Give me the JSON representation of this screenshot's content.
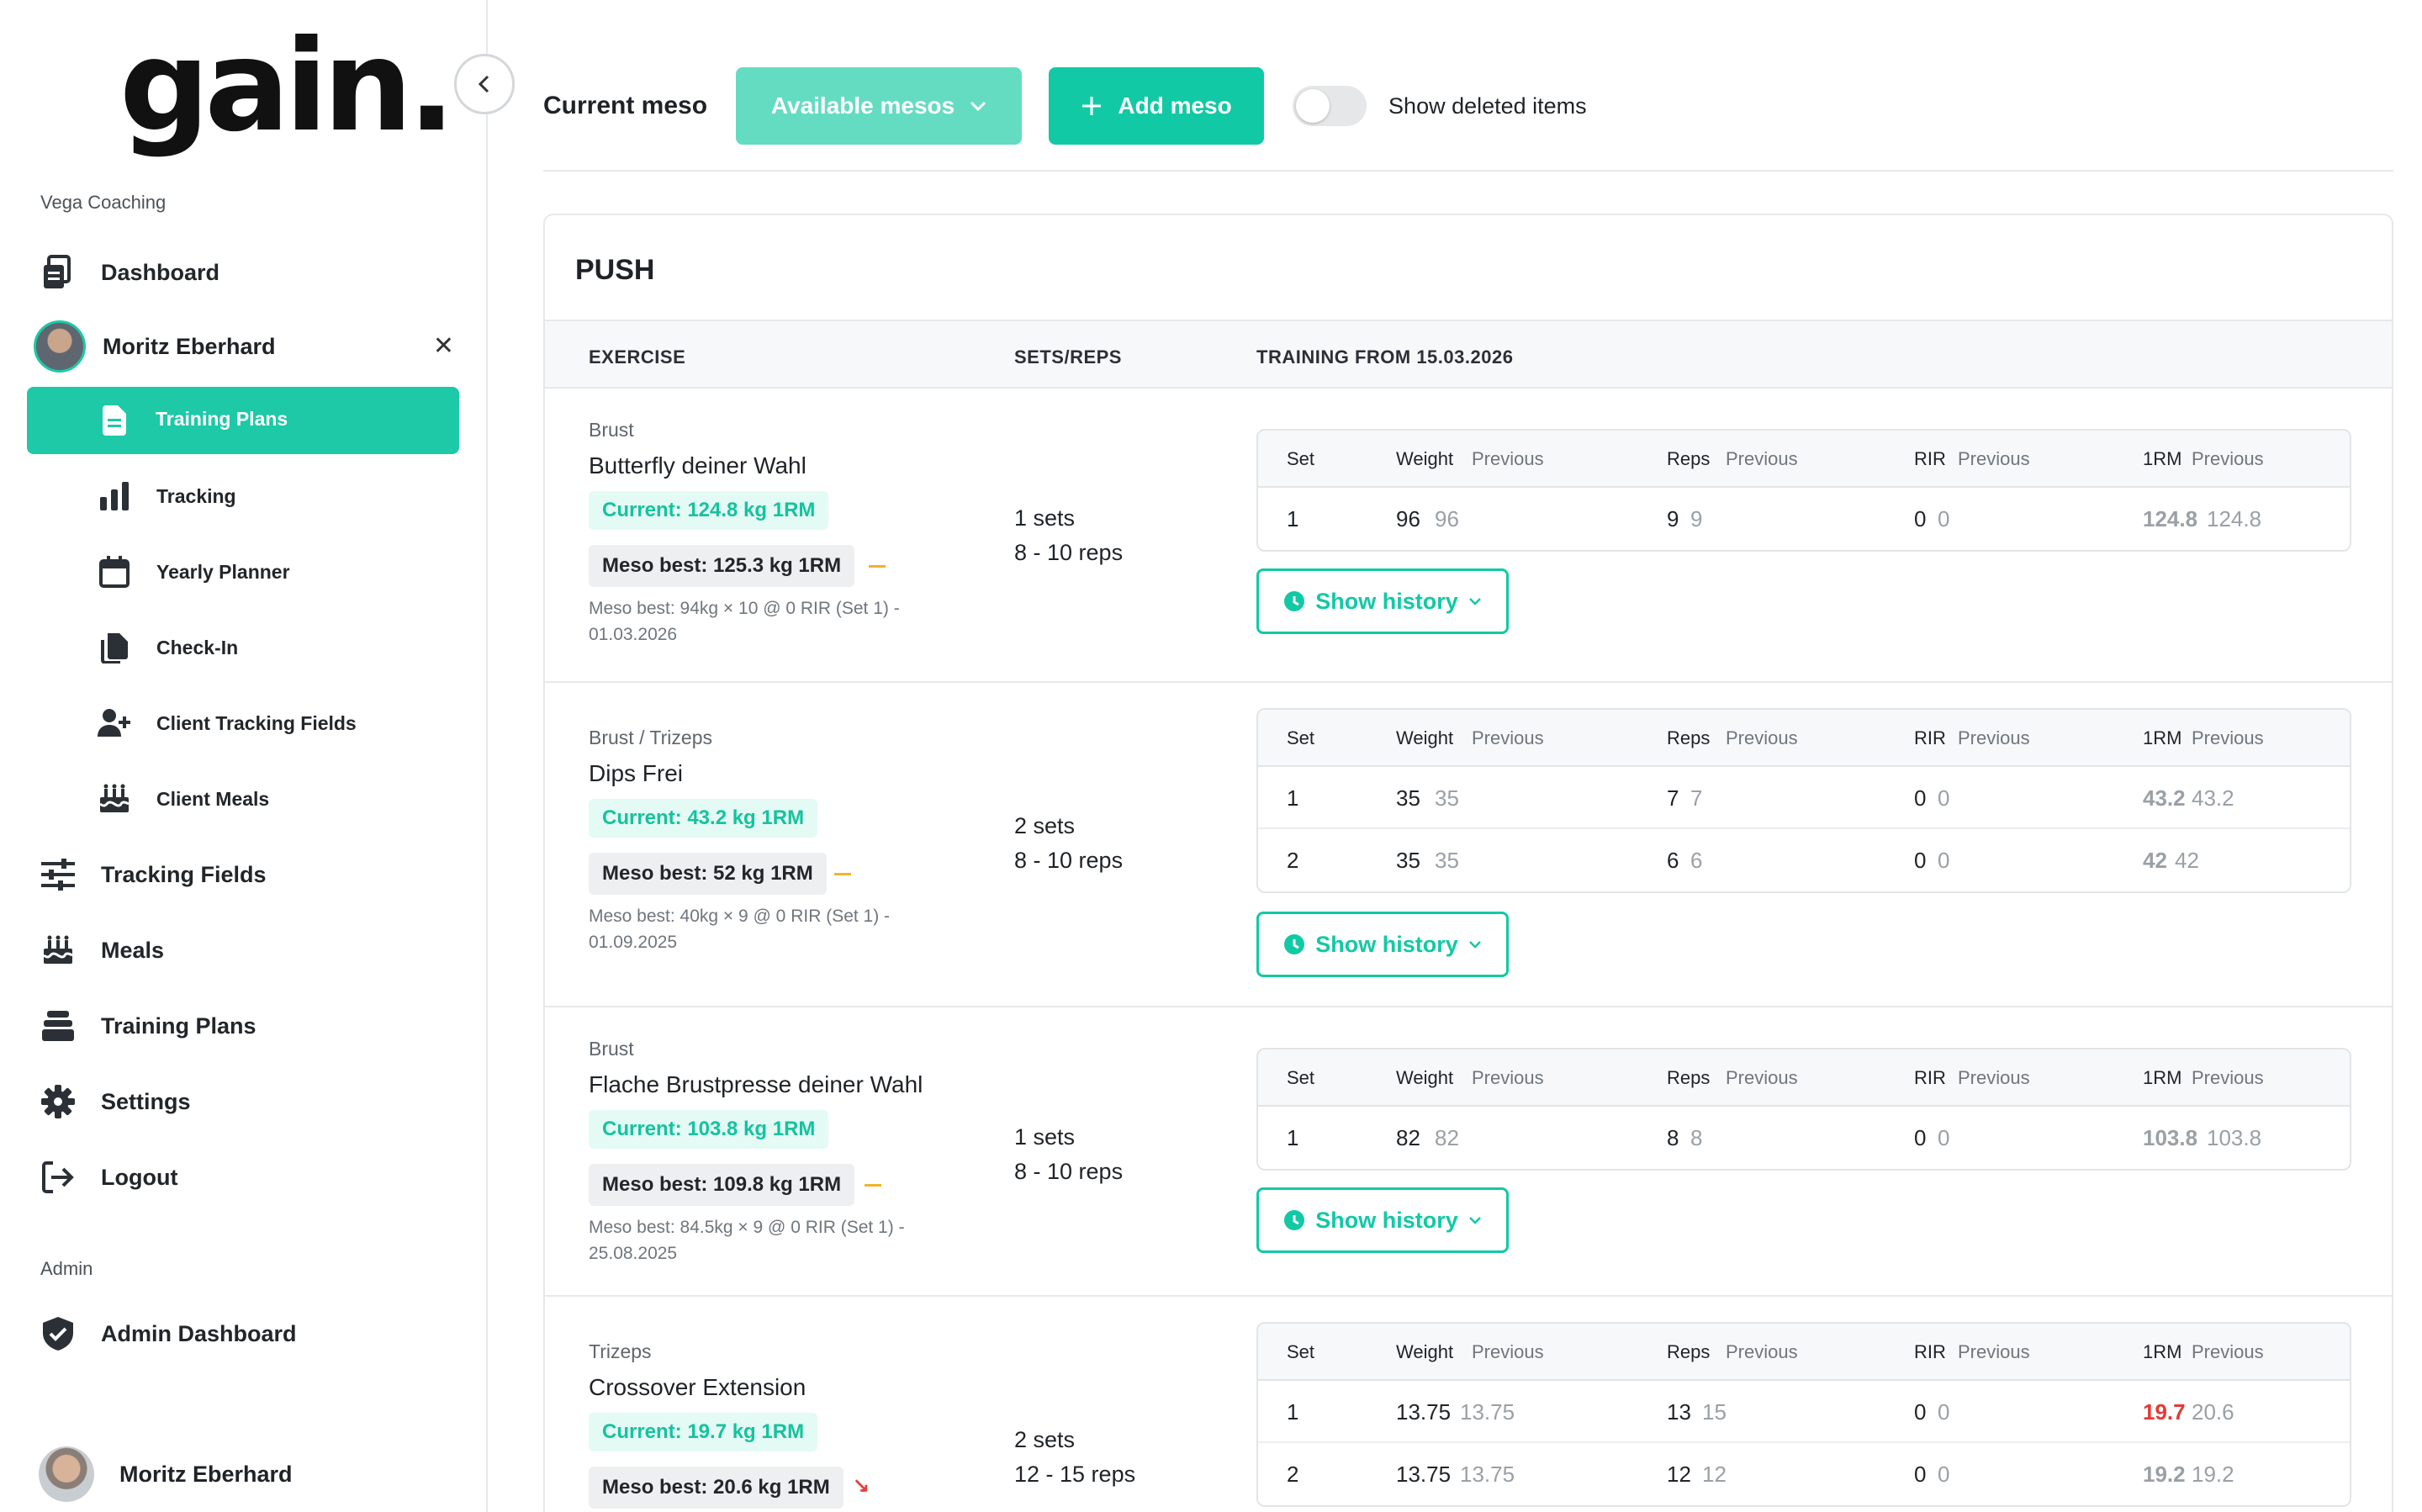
{
  "brand": {
    "logo_text": "gain.",
    "accent": "#12c9a5"
  },
  "sidebar": {
    "org_label": "Vega Coaching",
    "dashboard": "Dashboard",
    "client": {
      "name": "Moritz Eberhard"
    },
    "client_items": [
      {
        "label": "Training Plans",
        "icon": "document-icon",
        "active": true
      },
      {
        "label": "Tracking",
        "icon": "bar-chart-icon"
      },
      {
        "label": "Yearly Planner",
        "icon": "calendar-icon"
      },
      {
        "label": "Check-In",
        "icon": "copy-icon"
      },
      {
        "label": "Client Tracking Fields",
        "icon": "user-plus-icon"
      },
      {
        "label": "Client Meals",
        "icon": "cake-icon"
      }
    ],
    "main_items": [
      {
        "label": "Tracking Fields",
        "icon": "sliders-icon"
      },
      {
        "label": "Meals",
        "icon": "cake-icon"
      },
      {
        "label": "Training Plans",
        "icon": "layers-icon"
      },
      {
        "label": "Settings",
        "icon": "gear-icon"
      },
      {
        "label": "Logout",
        "icon": "logout-icon"
      }
    ],
    "admin_label": "Admin",
    "admin_dashboard": "Admin Dashboard",
    "user": {
      "name": "Moritz Eberhard"
    }
  },
  "toolbar": {
    "current_meso_label": "Current meso",
    "available_mesos": "Available mesos",
    "add_meso": "Add meso",
    "show_deleted": "Show deleted items",
    "show_deleted_on": false
  },
  "plan": {
    "title": "PUSH",
    "col_exercise": "EXERCISE",
    "col_sets": "SETS/REPS",
    "col_training": "TRAINING FROM 15.03.2026",
    "set_headers": {
      "set": "Set",
      "weight": "Weight",
      "reps": "Reps",
      "rir": "RIR",
      "orm": "1RM",
      "previous": "Previous"
    },
    "show_history": "Show history",
    "exercises": [
      {
        "category": "Brust",
        "name": "Butterfly deiner Wahl",
        "current": "Current: 124.8 kg 1RM",
        "meso_best": "Meso best: 125.3 kg 1RM",
        "trend": "flat",
        "note": "Meso best: 94kg × 10 @ 0 RIR (Set 1) - 01.03.2026",
        "sets": "1 sets",
        "reps": "8 - 10 reps",
        "rows": [
          {
            "set": "1",
            "weight": "96",
            "weight_prev": "96",
            "reps": "9",
            "reps_prev": "9",
            "rir": "0",
            "rir_prev": "0",
            "orm": "124.8",
            "orm_prev": "124.8",
            "orm_red": false
          }
        ]
      },
      {
        "category": "Brust / Trizeps",
        "name": "Dips Frei",
        "current": "Current: 43.2 kg 1RM",
        "meso_best": "Meso best: 52 kg 1RM",
        "trend": "flat",
        "note": "Meso best: 40kg × 9 @ 0 RIR (Set 1) - 01.09.2025",
        "sets": "2 sets",
        "reps": "8 - 10 reps",
        "rows": [
          {
            "set": "1",
            "weight": "35",
            "weight_prev": "35",
            "reps": "7",
            "reps_prev": "7",
            "rir": "0",
            "rir_prev": "0",
            "orm": "43.2",
            "orm_prev": "43.2",
            "orm_red": false
          },
          {
            "set": "2",
            "weight": "35",
            "weight_prev": "35",
            "reps": "6",
            "reps_prev": "6",
            "rir": "0",
            "rir_prev": "0",
            "orm": "42",
            "orm_prev": "42",
            "orm_red": false
          }
        ]
      },
      {
        "category": "Brust",
        "name": "Flache Brustpresse deiner Wahl",
        "current": "Current: 103.8 kg 1RM",
        "meso_best": "Meso best: 109.8 kg 1RM",
        "trend": "flat",
        "note": "Meso best: 84.5kg × 9 @ 0 RIR (Set 1) - 25.08.2025",
        "sets": "1 sets",
        "reps": "8 - 10 reps",
        "rows": [
          {
            "set": "1",
            "weight": "82",
            "weight_prev": "82",
            "reps": "8",
            "reps_prev": "8",
            "rir": "0",
            "rir_prev": "0",
            "orm": "103.8",
            "orm_prev": "103.8",
            "orm_red": false
          }
        ]
      },
      {
        "category": "Trizeps",
        "name": "Crossover Extension",
        "current": "Current: 19.7 kg 1RM",
        "meso_best": "Meso best: 20.6 kg 1RM",
        "trend": "down",
        "note": "",
        "sets": "2 sets",
        "reps": "12 - 15 reps",
        "rows": [
          {
            "set": "1",
            "weight": "13.75",
            "weight_prev": "13.75",
            "reps": "13",
            "reps_prev": "15",
            "rir": "0",
            "rir_prev": "0",
            "orm": "19.7",
            "orm_prev": "20.6",
            "orm_red": true
          },
          {
            "set": "2",
            "weight": "13.75",
            "weight_prev": "13.75",
            "reps": "12",
            "reps_prev": "12",
            "rir": "0",
            "rir_prev": "0",
            "orm": "19.2",
            "orm_prev": "19.2",
            "orm_red": false
          }
        ]
      }
    ]
  }
}
